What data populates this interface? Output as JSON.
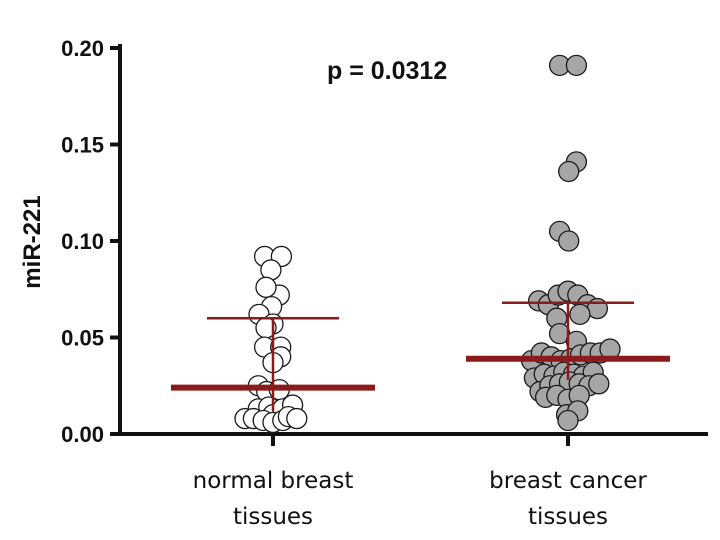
{
  "chart_data": {
    "type": "scatter",
    "subtype": "dot-plot-median-iqr",
    "title": "",
    "xlabel": "",
    "ylabel": "miR-221",
    "ylim": [
      0.0,
      0.2
    ],
    "yticks": [
      "0.00",
      "0.05",
      "0.10",
      "0.15",
      "0.20"
    ],
    "annotation": "p = 0.0312",
    "colors": {
      "normal_fill": "#ffffff",
      "cancer_fill": "#a6a6a6",
      "marker_edge": "#1a1a1a",
      "summary_line": "#8b1a1a",
      "axis": "#111111"
    },
    "series": [
      {
        "name": "normal breast tissues",
        "label_lines": [
          "normal breast",
          "tissues"
        ],
        "median": 0.024,
        "q1": 0.012,
        "q3": 0.06,
        "points": [
          {
            "x": -0.12,
            "y": 0.092
          },
          {
            "x": 0.12,
            "y": 0.092
          },
          {
            "x": -0.03,
            "y": 0.085
          },
          {
            "x": 0.09,
            "y": 0.072
          },
          {
            "x": -0.1,
            "y": 0.076
          },
          {
            "x": -0.02,
            "y": 0.066
          },
          {
            "x": -0.2,
            "y": 0.062
          },
          {
            "x": 0.0,
            "y": 0.057
          },
          {
            "x": -0.1,
            "y": 0.055
          },
          {
            "x": -0.12,
            "y": 0.045
          },
          {
            "x": 0.11,
            "y": 0.045
          },
          {
            "x": 0.11,
            "y": 0.04
          },
          {
            "x": 0.0,
            "y": 0.037
          },
          {
            "x": -0.21,
            "y": 0.025
          },
          {
            "x": -0.09,
            "y": 0.022
          },
          {
            "x": 0.09,
            "y": 0.023
          },
          {
            "x": -0.21,
            "y": 0.013
          },
          {
            "x": -0.06,
            "y": 0.014
          },
          {
            "x": 0.0,
            "y": 0.01
          },
          {
            "x": 0.14,
            "y": 0.013
          },
          {
            "x": 0.28,
            "y": 0.015
          },
          {
            "x": -0.4,
            "y": 0.008
          },
          {
            "x": -0.28,
            "y": 0.008
          },
          {
            "x": -0.14,
            "y": 0.007
          },
          {
            "x": 0.0,
            "y": 0.006
          },
          {
            "x": 0.14,
            "y": 0.007
          },
          {
            "x": 0.22,
            "y": 0.009
          },
          {
            "x": 0.34,
            "y": 0.008
          }
        ]
      },
      {
        "name": "breast cancer tissues",
        "label_lines": [
          "breast cancer",
          "tissues"
        ],
        "median": 0.039,
        "q1": 0.028,
        "q3": 0.068,
        "points": [
          {
            "x": -0.12,
            "y": 0.191
          },
          {
            "x": 0.12,
            "y": 0.191
          },
          {
            "x": 0.12,
            "y": 0.141
          },
          {
            "x": 0.01,
            "y": 0.136
          },
          {
            "x": -0.12,
            "y": 0.105
          },
          {
            "x": 0.01,
            "y": 0.1
          },
          {
            "x": -0.42,
            "y": 0.069
          },
          {
            "x": -0.28,
            "y": 0.067
          },
          {
            "x": -0.14,
            "y": 0.072
          },
          {
            "x": 0.0,
            "y": 0.074
          },
          {
            "x": 0.14,
            "y": 0.072
          },
          {
            "x": 0.28,
            "y": 0.067
          },
          {
            "x": 0.42,
            "y": 0.065
          },
          {
            "x": -0.16,
            "y": 0.06
          },
          {
            "x": 0.17,
            "y": 0.062
          },
          {
            "x": -0.12,
            "y": 0.052
          },
          {
            "x": 0.12,
            "y": 0.048
          },
          {
            "x": -0.52,
            "y": 0.038
          },
          {
            "x": -0.38,
            "y": 0.042
          },
          {
            "x": -0.24,
            "y": 0.04
          },
          {
            "x": -0.1,
            "y": 0.038
          },
          {
            "x": 0.04,
            "y": 0.039
          },
          {
            "x": 0.18,
            "y": 0.041
          },
          {
            "x": 0.32,
            "y": 0.042
          },
          {
            "x": 0.46,
            "y": 0.042
          },
          {
            "x": 0.6,
            "y": 0.044
          },
          {
            "x": -0.48,
            "y": 0.029
          },
          {
            "x": -0.34,
            "y": 0.031
          },
          {
            "x": -0.2,
            "y": 0.03
          },
          {
            "x": -0.06,
            "y": 0.032
          },
          {
            "x": 0.08,
            "y": 0.031
          },
          {
            "x": 0.22,
            "y": 0.03
          },
          {
            "x": 0.36,
            "y": 0.032
          },
          {
            "x": -0.4,
            "y": 0.022
          },
          {
            "x": -0.26,
            "y": 0.025
          },
          {
            "x": -0.12,
            "y": 0.026
          },
          {
            "x": 0.02,
            "y": 0.027
          },
          {
            "x": 0.16,
            "y": 0.026
          },
          {
            "x": 0.3,
            "y": 0.025
          },
          {
            "x": 0.44,
            "y": 0.026
          },
          {
            "x": -0.32,
            "y": 0.019
          },
          {
            "x": -0.16,
            "y": 0.02
          },
          {
            "x": 0.0,
            "y": 0.018
          },
          {
            "x": 0.16,
            "y": 0.02
          },
          {
            "x": -0.02,
            "y": 0.01
          },
          {
            "x": 0.14,
            "y": 0.012
          },
          {
            "x": 0.0,
            "y": 0.007
          }
        ]
      }
    ]
  }
}
